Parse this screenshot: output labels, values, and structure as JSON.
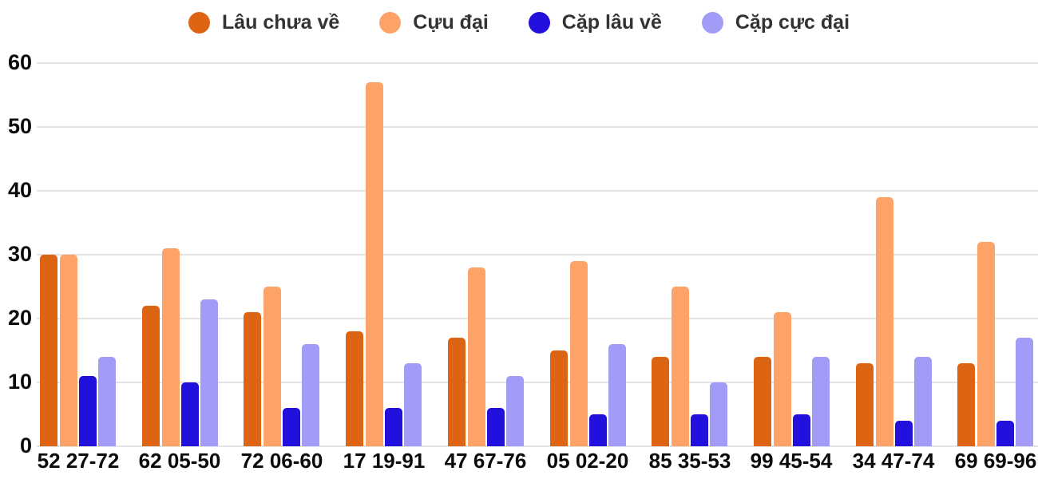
{
  "chart_data": {
    "type": "bar",
    "title": "",
    "xlabel": "",
    "ylabel": "",
    "categories": [
      "52 27-72",
      "62 05-50",
      "72 06-60",
      "17 19-91",
      "47 67-76",
      "05 02-20",
      "85 35-53",
      "99 45-54",
      "34 47-74",
      "69 69-96"
    ],
    "series": [
      {
        "name": "Lâu chưa về",
        "color": "#DD6413",
        "values": [
          30,
          22,
          21,
          18,
          17,
          15,
          14,
          14,
          13,
          13
        ]
      },
      {
        "name": "Cựu đại",
        "color": "#FDA368",
        "values": [
          30,
          31,
          25,
          57,
          28,
          29,
          25,
          21,
          39,
          32
        ]
      },
      {
        "name": "Cặp lâu về",
        "color": "#2211DD",
        "values": [
          11,
          10,
          6,
          6,
          6,
          5,
          5,
          5,
          4,
          4
        ]
      },
      {
        "name": "Cặp cực đại",
        "color": "#A29CF8",
        "values": [
          14,
          23,
          16,
          13,
          11,
          16,
          10,
          14,
          14,
          17
        ]
      }
    ],
    "ylim": [
      0,
      60
    ],
    "yticks": [
      0,
      10,
      20,
      30,
      40,
      50,
      60
    ],
    "grid": true,
    "legend_position": "top"
  },
  "colors": {
    "background": "#FFFFFF",
    "gridline": "#E4E4E4",
    "axis_text": "#0A0A0A",
    "legend_text": "#333333"
  }
}
